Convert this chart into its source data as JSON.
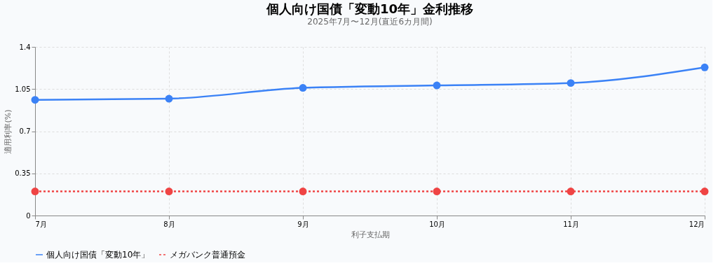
{
  "chart_data": {
    "type": "line",
    "title": "個人向け国債「変動10年」金利推移",
    "subtitle": "2025年7月〜12月(直近6カ月間)",
    "xlabel": "利子支払期",
    "ylabel": "適用利率(%)",
    "categories": [
      "7月",
      "8月",
      "9月",
      "10月",
      "11月",
      "12月"
    ],
    "series": [
      {
        "name": "個人向け国債「変動10年」",
        "color": "#3b82f6",
        "values": [
          0.96,
          0.97,
          1.06,
          1.08,
          1.1,
          1.23
        ],
        "line_style": "solid"
      },
      {
        "name": "メガバンク普通預金",
        "color": "#ef4444",
        "values": [
          0.2,
          0.2,
          0.2,
          0.2,
          0.2,
          0.2
        ],
        "line_style": "dotted"
      }
    ],
    "ylim": [
      0,
      1.4
    ],
    "yticks": [
      0,
      0.35,
      0.7,
      1.05,
      1.4
    ],
    "grid": true,
    "legend": "bottom",
    "marker": "circle"
  }
}
